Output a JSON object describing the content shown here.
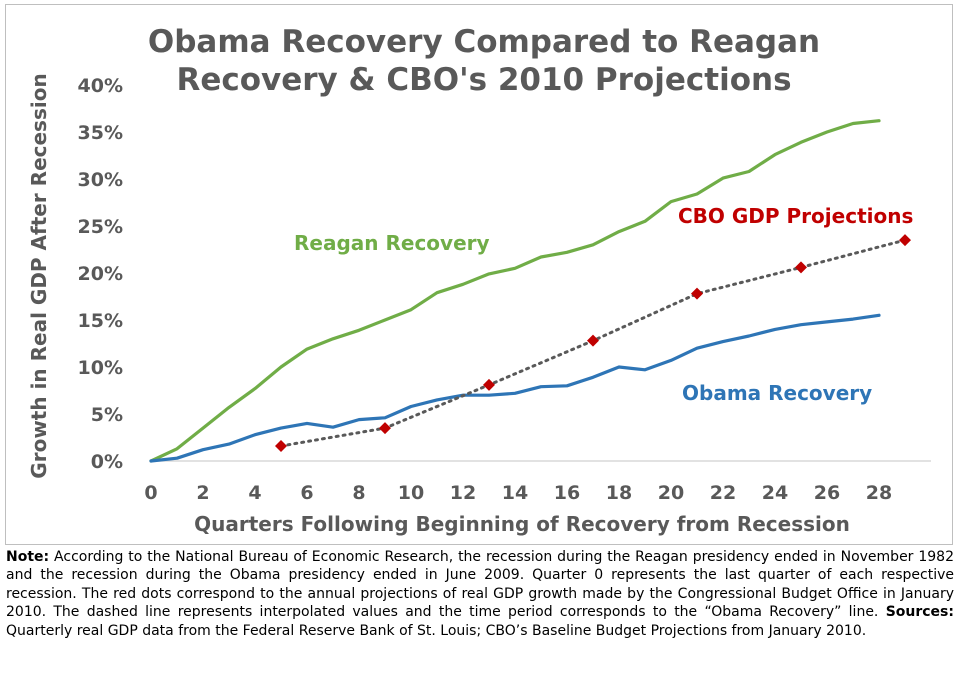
{
  "chart_data": {
    "type": "line",
    "title_line1": "Obama Recovery Compared to Reagan",
    "title_line2": "Recovery & CBO's 2010 Projections",
    "xlabel": "Quarters Following Beginning of Recovery from Recession",
    "ylabel": "Growth in Real GDP After Recession",
    "xlim": [
      0,
      30
    ],
    "ylim": [
      0,
      40
    ],
    "x_ticks": [
      0,
      2,
      4,
      6,
      8,
      10,
      12,
      14,
      16,
      18,
      20,
      22,
      24,
      26,
      28
    ],
    "y_ticks": [
      0,
      5,
      10,
      15,
      20,
      25,
      30,
      35,
      40
    ],
    "y_tick_labels": [
      "0%",
      "5%",
      "10%",
      "15%",
      "20%",
      "25%",
      "30%",
      "35%",
      "40%"
    ],
    "grid": false,
    "series": [
      {
        "name": "Reagan Recovery",
        "color": "#70ad47",
        "x": [
          0,
          1,
          2,
          3,
          4,
          5,
          6,
          7,
          8,
          9,
          10,
          11,
          12,
          13,
          14,
          15,
          16,
          17,
          18,
          19,
          20,
          21,
          22,
          23,
          24,
          25,
          26,
          27,
          28
        ],
        "values": [
          0,
          1.3,
          3.5,
          5.7,
          7.7,
          10.0,
          11.9,
          13.0,
          13.9,
          15.0,
          16.1,
          17.9,
          18.8,
          19.9,
          20.5,
          21.7,
          22.2,
          23.0,
          24.4,
          25.5,
          27.6,
          28.4,
          30.1,
          30.8,
          32.6,
          33.9,
          35.0,
          35.9,
          36.2
        ]
      },
      {
        "name": "Obama Recovery",
        "color": "#2e75b6",
        "x": [
          0,
          1,
          2,
          3,
          4,
          5,
          6,
          7,
          8,
          9,
          10,
          11,
          12,
          13,
          14,
          15,
          16,
          17,
          18,
          19,
          20,
          21,
          22,
          23,
          24,
          25,
          26,
          27,
          28
        ],
        "values": [
          0,
          0.3,
          1.2,
          1.8,
          2.8,
          3.5,
          4.0,
          3.6,
          4.4,
          4.6,
          5.8,
          6.5,
          7.0,
          7.0,
          7.2,
          7.9,
          8.0,
          8.9,
          10.0,
          9.7,
          10.7,
          12.0,
          12.7,
          13.3,
          14.0,
          14.5,
          14.8,
          15.1,
          15.5
        ]
      },
      {
        "name": "CBO GDP Projections",
        "color": "#c00000",
        "line_color": "#595959",
        "x": [
          5,
          9,
          13,
          17,
          21,
          25,
          29
        ],
        "values": [
          1.6,
          3.5,
          8.1,
          12.8,
          17.8,
          20.6,
          23.5
        ]
      }
    ]
  },
  "note": {
    "label": "Note:",
    "text": " According to the National Bureau of Economic Research, the recession during the Reagan presidency ended in November 1982 and the recession during the Obama presidency ended in June 2009. Quarter 0 represents the last quarter of each respective recession. The red dots correspond to the annual projections of real GDP growth made by the Congressional Budget Office in January 2010. The dashed line represents interpolated values and the time period corresponds to the “Obama Recovery” line.",
    "sources_label": "Sources:",
    "sources_text": " Quarterly real GDP data from the Federal Reserve Bank of St. Louis; CBO’s Baseline Budget Projections from January 2010."
  }
}
